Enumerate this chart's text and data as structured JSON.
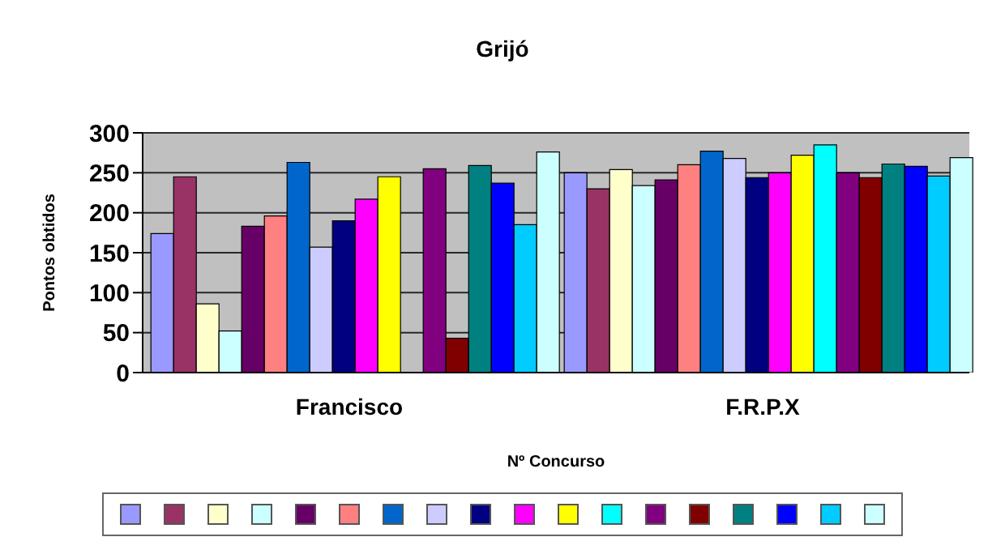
{
  "chart_data": {
    "type": "bar",
    "title": "Grijó",
    "xlabel": "Nº Concurso",
    "ylabel": "Pontos obtidos",
    "categories": [
      "Francisco",
      "F.R.P.X"
    ],
    "series": [
      {
        "color": "#9999ff",
        "values": [
          174,
          250
        ]
      },
      {
        "color": "#993366",
        "values": [
          245,
          230
        ]
      },
      {
        "color": "#ffffcc",
        "values": [
          86,
          254
        ]
      },
      {
        "color": "#ccffff",
        "values": [
          52,
          234
        ]
      },
      {
        "color": "#660066",
        "values": [
          183,
          241
        ]
      },
      {
        "color": "#ff8080",
        "values": [
          196,
          260
        ]
      },
      {
        "color": "#0066cc",
        "values": [
          263,
          277
        ]
      },
      {
        "color": "#ccccff",
        "values": [
          157,
          268
        ]
      },
      {
        "color": "#000080",
        "values": [
          190,
          244
        ]
      },
      {
        "color": "#ff00ff",
        "values": [
          217,
          250
        ]
      },
      {
        "color": "#ffff00",
        "values": [
          245,
          272
        ]
      },
      {
        "color": "#00ffff",
        "values": [
          0,
          285
        ]
      },
      {
        "color": "#800080",
        "values": [
          255,
          250
        ]
      },
      {
        "color": "#800000",
        "values": [
          43,
          244
        ]
      },
      {
        "color": "#008080",
        "values": [
          259,
          261
        ]
      },
      {
        "color": "#0000ff",
        "values": [
          237,
          258
        ]
      },
      {
        "color": "#00ccff",
        "values": [
          185,
          246
        ]
      },
      {
        "color": "#ccffff",
        "values": [
          276,
          269
        ]
      }
    ],
    "ylim": [
      0,
      300
    ],
    "yticks": [
      0,
      50,
      100,
      150,
      200,
      250,
      300
    ],
    "grid": "y"
  }
}
